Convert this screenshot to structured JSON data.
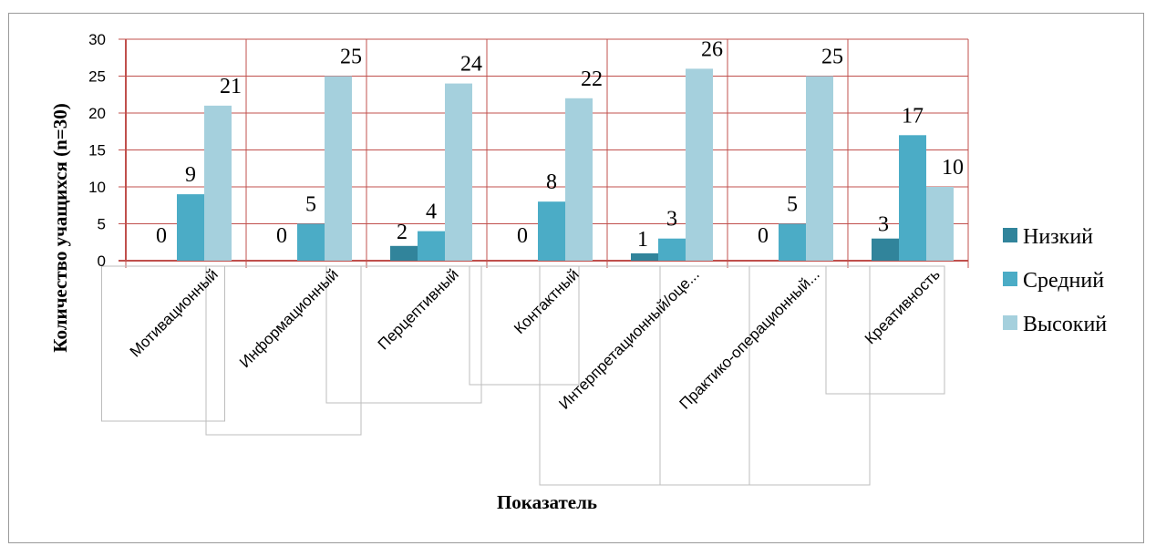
{
  "chart_data": {
    "type": "bar",
    "categories": [
      "Мотивационный",
      "Информационный",
      "Перцептивный",
      "Контактный",
      "Интерпретационный/оце...",
      "Практико-операционный...",
      "Креативность"
    ],
    "series": [
      {
        "name": "Низкий",
        "values": [
          0,
          0,
          2,
          0,
          1,
          0,
          3
        ],
        "color": "#31849b"
      },
      {
        "name": "Средний",
        "values": [
          9,
          5,
          4,
          8,
          3,
          5,
          17
        ],
        "color": "#4bacc6"
      },
      {
        "name": "Высокий",
        "values": [
          21,
          25,
          24,
          22,
          26,
          25,
          10
        ],
        "color": "#a5d0dd"
      }
    ],
    "xlabel": "Показатель",
    "ylabel": "Количество учащихся (n=30)",
    "ylim": [
      0,
      30
    ],
    "yticks": [
      "0",
      "5",
      "10",
      "15",
      "20",
      "25",
      "30"
    ],
    "grid": true,
    "grid_color": "#c0504d",
    "legend_position": "right"
  }
}
